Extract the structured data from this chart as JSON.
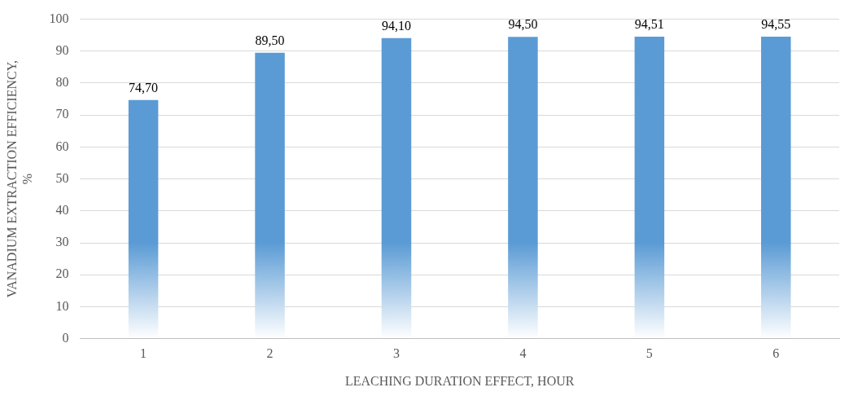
{
  "chart_data": {
    "type": "bar",
    "xlabel": "LEACHING DURATION EFFECT, HOUR",
    "ylabel": "VANADIUM EXTRACTION EFFICIENCY, %",
    "categories": [
      "1",
      "2",
      "3",
      "4",
      "5",
      "6"
    ],
    "values": [
      74.7,
      89.5,
      94.1,
      94.5,
      94.51,
      94.55
    ],
    "value_labels": [
      "74,70",
      "89,50",
      "94,10",
      "94,50",
      "94,51",
      "94,55"
    ],
    "color": "#5b9bd5",
    "ylim": [
      0,
      100
    ],
    "yticks": [
      0,
      10,
      20,
      30,
      40,
      50,
      60,
      70,
      80,
      90,
      100
    ],
    "grid": "y"
  }
}
